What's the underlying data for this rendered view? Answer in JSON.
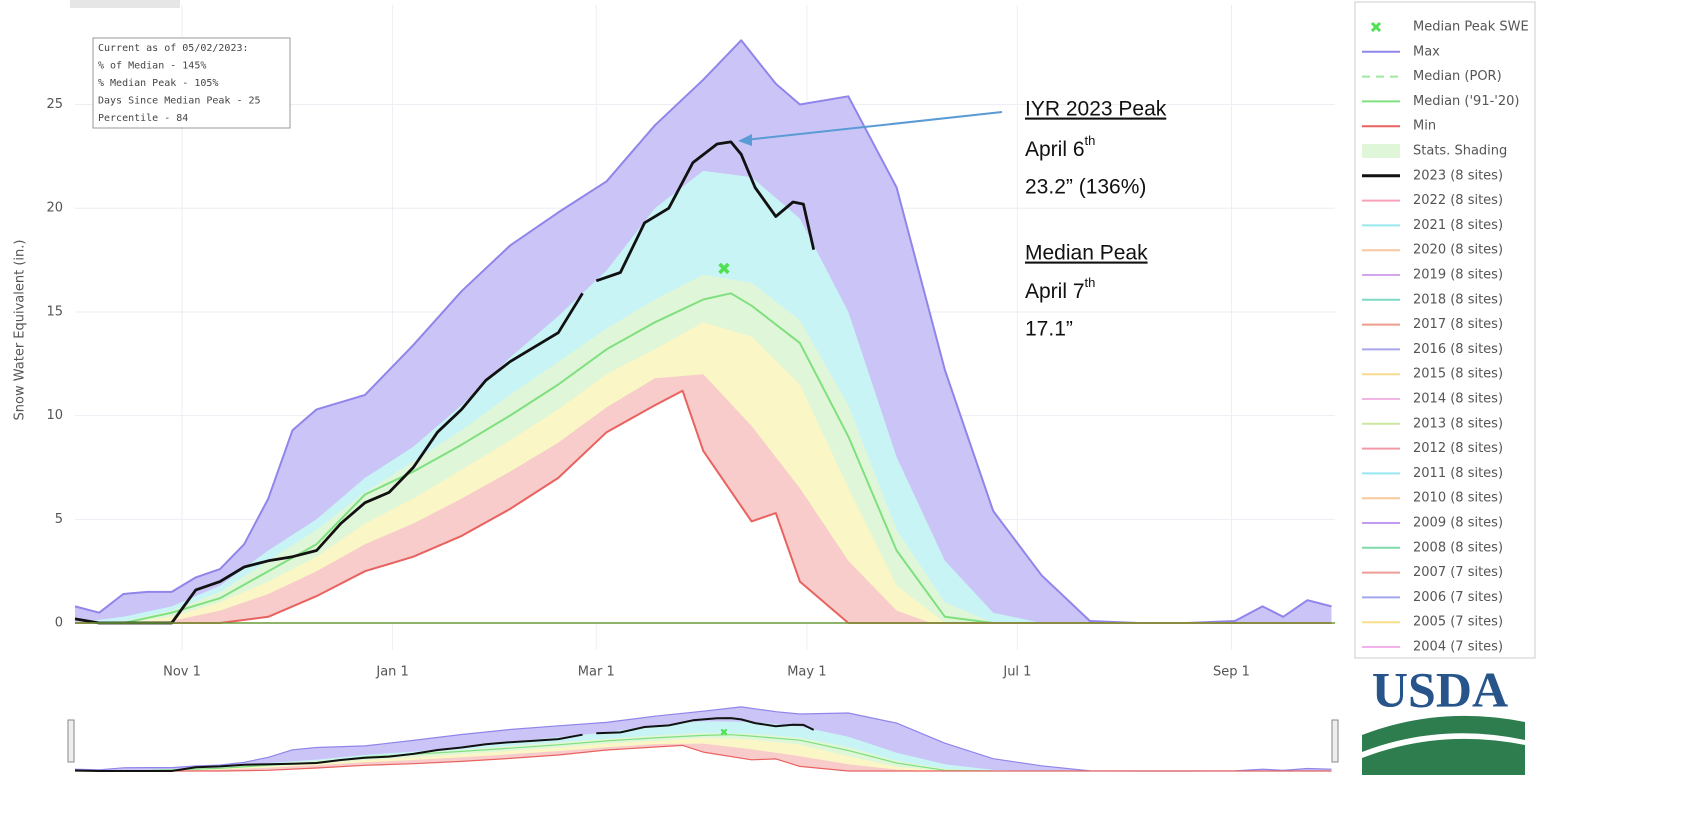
{
  "chart_data": {
    "type": "line",
    "ylabel": "Snow Water Equivalent (in.)",
    "xlim": [
      0,
      365
    ],
    "xticks": [
      {
        "value": 31,
        "label": "Nov 1"
      },
      {
        "value": 92,
        "label": "Jan 1"
      },
      {
        "value": 151,
        "label": "Mar 1"
      },
      {
        "value": 212,
        "label": "May 1"
      },
      {
        "value": 273,
        "label": "Jul 1"
      },
      {
        "value": 335,
        "label": "Sep 1"
      }
    ],
    "ylim": [
      -1.3,
      29.8
    ],
    "yticks": [
      0,
      5,
      10,
      15,
      20,
      25
    ],
    "grid": true,
    "marker": {
      "name": "Median Peak SWE",
      "color": "#4ee04e",
      "x": 188,
      "y": 17.1
    },
    "shading": {
      "name": "Stats. Shading",
      "color": "#dff6d9",
      "bands": [
        {
          "color": "#c8f4f6",
          "x": [
            0,
            14,
            28,
            42,
            56,
            70,
            84,
            98,
            112,
            126,
            140,
            154,
            168,
            182,
            196,
            210,
            224,
            238,
            252,
            266,
            280
          ],
          "values": [
            0,
            0.3,
            0.8,
            1.8,
            3.5,
            5,
            7,
            8.5,
            10.5,
            12.8,
            14.8,
            17,
            20,
            21.8,
            21.5,
            19.5,
            15,
            8,
            3,
            0.5,
            0
          ]
        },
        {
          "color": "#e0f6d8",
          "x": [
            0,
            14,
            28,
            42,
            56,
            70,
            84,
            98,
            112,
            126,
            140,
            154,
            168,
            182,
            196,
            210,
            224,
            238,
            252,
            266
          ],
          "values": [
            0,
            0.1,
            0.6,
            1.5,
            3,
            4.5,
            6.3,
            7.8,
            9.3,
            11,
            12.6,
            14.2,
            15.6,
            16.8,
            16.4,
            14.6,
            10.5,
            4.5,
            1,
            0
          ]
        },
        {
          "color": "#fbf6c6",
          "x": [
            0,
            14,
            28,
            42,
            56,
            70,
            84,
            98,
            112,
            126,
            140,
            154,
            168,
            182,
            196,
            210,
            224,
            238,
            252
          ],
          "values": [
            0,
            0,
            0.3,
            1,
            2,
            3.2,
            4.8,
            6,
            7.4,
            8.8,
            10.3,
            12,
            13.2,
            14.5,
            13.8,
            11.5,
            6.5,
            1.8,
            0
          ]
        },
        {
          "color": "#f8cccb",
          "x": [
            0,
            14,
            28,
            42,
            56,
            70,
            84,
            98,
            112,
            126,
            140,
            154,
            168,
            182,
            196,
            210,
            224,
            238,
            248
          ],
          "values": [
            0,
            0,
            0.1,
            0.6,
            1.4,
            2.5,
            3.8,
            4.8,
            6,
            7.3,
            8.7,
            10.4,
            11.8,
            12,
            9.5,
            6.5,
            3,
            0.6,
            0
          ]
        }
      ]
    },
    "series": [
      {
        "name": "Max",
        "color": "#8f85ea",
        "fill": "#cbc5f7",
        "x": [
          0,
          7,
          14,
          21,
          28,
          35,
          42,
          49,
          56,
          63,
          70,
          84,
          98,
          112,
          126,
          140,
          154,
          168,
          182,
          193,
          203,
          210,
          224,
          238,
          252,
          266,
          280,
          294,
          308,
          322,
          336,
          344,
          350,
          357,
          364
        ],
        "values": [
          0.8,
          0.5,
          1.4,
          1.5,
          1.5,
          2.2,
          2.6,
          3.8,
          6,
          9.3,
          10.3,
          11,
          13.4,
          16,
          18.2,
          19.8,
          21.3,
          24,
          26.2,
          28.1,
          26,
          25,
          25.4,
          21,
          12.2,
          5.4,
          2.3,
          0.1,
          0,
          0,
          0.1,
          0.8,
          0.3,
          1.1,
          0.8
        ]
      },
      {
        "name": "Median ('91-'20)",
        "color": "#7fe07f",
        "x": [
          0,
          14,
          28,
          42,
          56,
          70,
          84,
          98,
          112,
          126,
          140,
          154,
          168,
          182,
          190,
          196,
          210,
          224,
          238,
          252,
          266
        ],
        "values": [
          0,
          0,
          0.5,
          1.2,
          2.5,
          3.8,
          6.2,
          7.3,
          8.6,
          10,
          11.5,
          13.2,
          14.5,
          15.6,
          15.9,
          15.3,
          13.5,
          9,
          3.5,
          0.3,
          0
        ]
      },
      {
        "name": "Min",
        "color": "#e8625f",
        "x": [
          0,
          14,
          28,
          42,
          56,
          70,
          84,
          98,
          112,
          126,
          140,
          154,
          168,
          176,
          182,
          196,
          203,
          210,
          224,
          364
        ],
        "values": [
          0,
          0,
          0,
          0,
          0.3,
          1.3,
          2.5,
          3.2,
          4.2,
          5.5,
          7,
          9.2,
          10.5,
          11.2,
          8.3,
          4.9,
          5.3,
          2,
          0,
          0
        ]
      },
      {
        "name": "2023 (8 sites)",
        "color": "#111111",
        "x": [
          0,
          7,
          14,
          21,
          28,
          35,
          42,
          49,
          56,
          63,
          70,
          77,
          84,
          91,
          98,
          105,
          112,
          119,
          126,
          133,
          140,
          147,
          149,
          151,
          158,
          165,
          172,
          179,
          186,
          190,
          193,
          197,
          203,
          208,
          211,
          214
        ],
        "values": [
          0.2,
          0,
          0,
          0,
          0,
          1.6,
          2,
          2.7,
          3,
          3.2,
          3.5,
          4.8,
          5.8,
          6.3,
          7.5,
          9.2,
          10.3,
          11.7,
          12.6,
          13.3,
          14,
          15.9,
          null,
          16.5,
          16.9,
          19.3,
          20,
          22.2,
          23.1,
          23.2,
          22.6,
          21,
          19.6,
          20.3,
          20.2,
          18
        ]
      }
    ],
    "hidden_legend": [
      {
        "name": "Median (POR)",
        "color": "#9fe89f"
      },
      {
        "name": "2022 (8 sites)",
        "color": "#f7a0b8"
      },
      {
        "name": "2021 (8 sites)",
        "color": "#99e8ec"
      },
      {
        "name": "2020 (8 sites)",
        "color": "#f9c79f"
      },
      {
        "name": "2019 (8 sites)",
        "color": "#d4a5ef"
      },
      {
        "name": "2018 (8 sites)",
        "color": "#7dd8c4"
      },
      {
        "name": "2017 (8 sites)",
        "color": "#ee9a8c"
      },
      {
        "name": "2016 (8 sites)",
        "color": "#a9a8ef"
      },
      {
        "name": "2015 (8 sites)",
        "color": "#f7dc8f"
      },
      {
        "name": "2014 (8 sites)",
        "color": "#f1b6e3"
      },
      {
        "name": "2013 (8 sites)",
        "color": "#cde7a0"
      },
      {
        "name": "2012 (8 sites)",
        "color": "#f39aa8"
      },
      {
        "name": "2011 (8 sites)",
        "color": "#99e6f0"
      },
      {
        "name": "2010 (8 sites)",
        "color": "#f9c898"
      },
      {
        "name": "2009 (8 sites)",
        "color": "#c39af0"
      },
      {
        "name": "2008 (8 sites)",
        "color": "#7fdcab"
      },
      {
        "name": "2007 (7 sites)",
        "color": "#ee9d96"
      },
      {
        "name": "2006 (7 sites)",
        "color": "#a2a6f2"
      },
      {
        "name": "2005 (7 sites)",
        "color": "#f8e08b"
      },
      {
        "name": "2004 (7 sites)",
        "color": "#f4b1ea"
      }
    ],
    "info_box": [
      "Current as of 05/02/2023:",
      "% of Median - 145%",
      "% Median Peak - 105%",
      "Days Since Median Peak - 25",
      "Percentile - 84"
    ],
    "annotations": {
      "peak_title": "IYR 2023 Peak",
      "peak_date": {
        "text": "April 6",
        "sup": "th"
      },
      "peak_value": "23.2” (136%)",
      "median_title": "Median Peak",
      "median_date": {
        "text": "April 7",
        "sup": "th"
      },
      "median_value": "17.1”"
    },
    "logo": "USDA"
  }
}
